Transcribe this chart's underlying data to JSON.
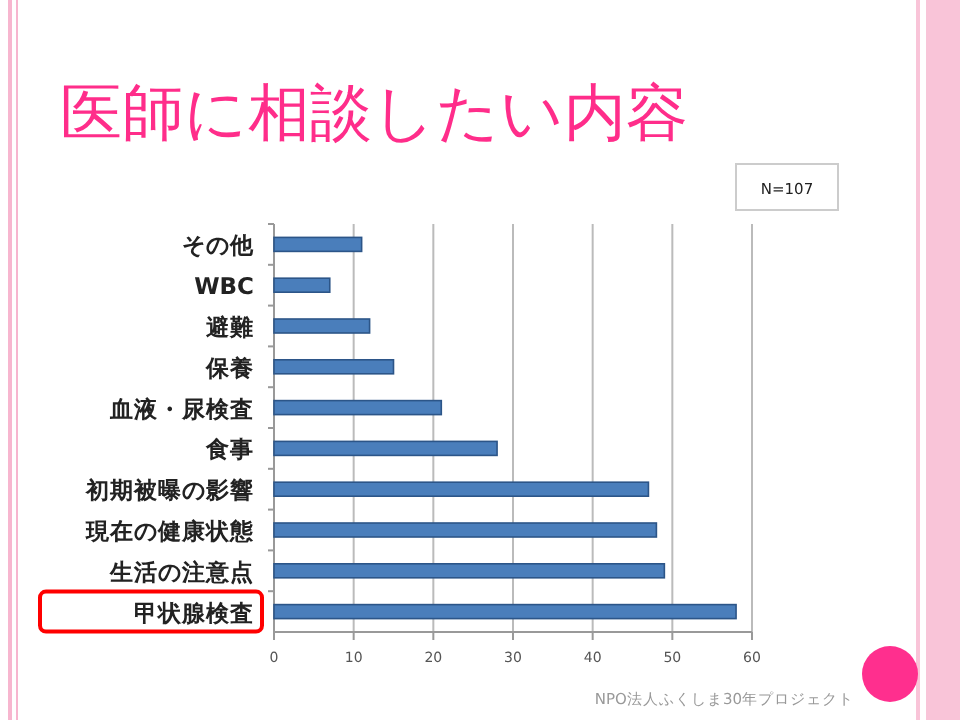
{
  "chart_data": {
    "type": "bar",
    "orientation": "horizontal",
    "title": "医師に相談したい内容",
    "categories": [
      "その他",
      "WBC",
      "避難",
      "保養",
      "血液・尿検査",
      "食事",
      "初期被曝の影響",
      "現在の健康状態",
      "生活の注意点",
      "甲状腺検査"
    ],
    "values": [
      11,
      7,
      12,
      15,
      21,
      28,
      47,
      48,
      49,
      58
    ],
    "color": "#4a7ebb",
    "xlim": [
      0,
      60
    ],
    "xticks": [
      0,
      10,
      20,
      30,
      40,
      50,
      60
    ],
    "grid": "x",
    "annotations": [
      "N=107",
      "NPO法人ふくしま30年プロジェクト"
    ]
  }
}
